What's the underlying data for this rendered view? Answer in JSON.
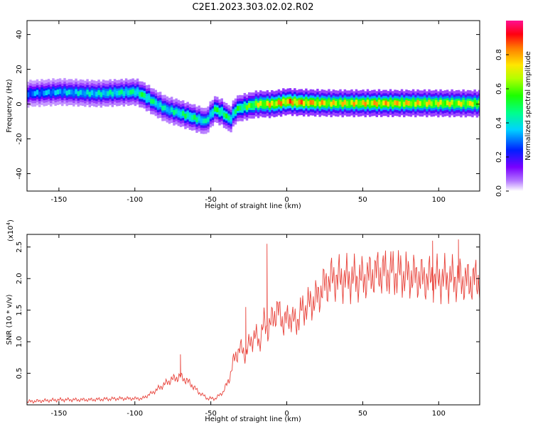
{
  "page_title": "C2E1.2023.303.02.02.R02",
  "chart_data": [
    {
      "type": "heatmap",
      "title": "C2E1.2023.303.02.02.R02",
      "xlabel": "Height of straight line (km)",
      "ylabel": "Frequency (Hz)",
      "xlim": [
        -171,
        127
      ],
      "ylim": [
        -50,
        48
      ],
      "x_ticks": [
        -150,
        -100,
        -50,
        0,
        50,
        100
      ],
      "y_ticks": [
        -40,
        -20,
        0,
        20,
        40
      ],
      "colorbar": {
        "label": "Normalized spectral amplitude",
        "range": [
          0.0,
          1.0
        ],
        "ticks": [
          0.0,
          0.2,
          0.4,
          0.6,
          0.8
        ]
      },
      "ridge": {
        "x": [
          -171,
          -150,
          -125,
          -100,
          -95,
          -88,
          -80,
          -72,
          -65,
          -58,
          -54,
          -48,
          -43,
          -38,
          -34,
          -30,
          -25,
          -20,
          -10,
          0,
          5,
          30,
          60,
          90,
          127
        ],
        "frequency_hz": [
          6,
          7,
          6,
          7,
          5,
          1,
          -3,
          -5,
          -7,
          -9,
          -10,
          -3,
          -5,
          -9,
          -3,
          -2,
          -1,
          0,
          0,
          1.5,
          1,
          0.5,
          0.5,
          0.5,
          0.3
        ],
        "amplitude": [
          0.35,
          0.4,
          0.45,
          0.5,
          0.55,
          0.5,
          0.45,
          0.5,
          0.55,
          0.5,
          0.45,
          0.55,
          0.6,
          0.5,
          0.55,
          0.6,
          0.65,
          0.75,
          0.85,
          0.9,
          0.9,
          0.8,
          0.85,
          0.8,
          0.75
        ]
      }
    },
    {
      "type": "line",
      "xlabel": "Height of straight line (km)",
      "ylabel": "SNR (10 * v/v)",
      "y_scale_label": "(x10",
      "y_scale_exponent": "4",
      "xlim": [
        -171,
        127
      ],
      "ylim": [
        0,
        2.7
      ],
      "x_ticks": [
        -150,
        -100,
        -50,
        0,
        50,
        100
      ],
      "y_ticks": [
        0.5,
        1.0,
        1.5,
        2.0,
        2.5
      ],
      "series": [
        {
          "color": "#e8423a",
          "x": [
            -171,
            -150,
            -130,
            -110,
            -95,
            -88,
            -82,
            -76,
            -70,
            -64,
            -58,
            -52,
            -47,
            -42,
            -38,
            -35,
            -31,
            -27,
            -24,
            -21,
            -18,
            -15,
            -12,
            -9,
            -6,
            -2,
            2,
            6,
            10,
            15,
            20,
            25,
            30,
            40,
            50,
            60,
            70,
            80,
            90,
            100,
            110,
            120,
            127
          ],
          "y": [
            0.05,
            0.08,
            0.08,
            0.1,
            0.1,
            0.2,
            0.3,
            0.4,
            0.45,
            0.35,
            0.2,
            0.1,
            0.1,
            0.2,
            0.4,
            0.7,
            0.9,
            0.8,
            1.0,
            1.1,
            1.0,
            1.3,
            1.2,
            1.4,
            1.5,
            1.3,
            1.4,
            1.3,
            1.5,
            1.6,
            1.7,
            1.9,
            2.0,
            2.0,
            2.0,
            2.1,
            2.1,
            2.05,
            2.0,
            2.0,
            2.0,
            1.95,
            2.0
          ],
          "spikes": [
            {
              "x": -13,
              "y": 2.55
            },
            {
              "x": -70,
              "y": 0.8
            },
            {
              "x": -27,
              "y": 1.55
            },
            {
              "x": 113,
              "y": 2.62
            },
            {
              "x": 96,
              "y": 2.6
            }
          ]
        }
      ]
    }
  ]
}
